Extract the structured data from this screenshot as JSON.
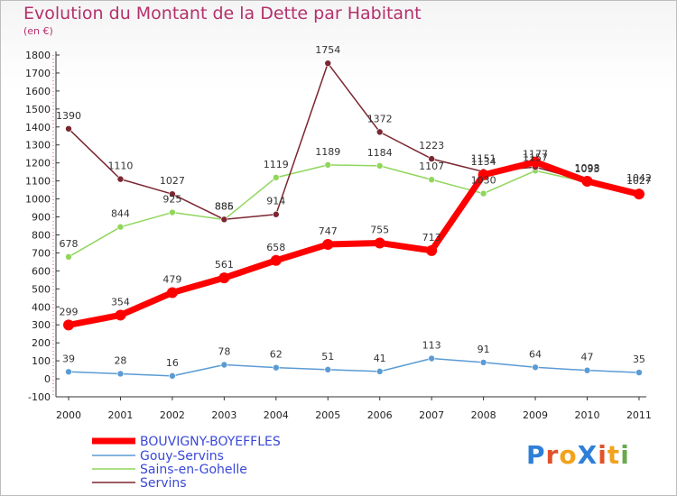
{
  "title": "Evolution du Montant de la Dette par Habitant",
  "unit": "(en €)",
  "logo": {
    "text": "ProXiti",
    "letters": [
      {
        "ch": "P",
        "color": "#2f7fd8"
      },
      {
        "ch": "r",
        "color": "#e2522a"
      },
      {
        "ch": "o",
        "color": "#f2a21b"
      },
      {
        "ch": "X",
        "color": "#2f7fd8"
      },
      {
        "ch": "i",
        "color": "#e2522a"
      },
      {
        "ch": "t",
        "color": "#f2a21b"
      },
      {
        "ch": "i",
        "color": "#6aa84f"
      }
    ]
  },
  "chart_data": {
    "type": "line",
    "title": "Evolution du Montant de la Dette par Habitant",
    "ylabel": "(en €)",
    "x": [
      "2000",
      "2001",
      "2002",
      "2003",
      "2004",
      "2005",
      "2006",
      "2007",
      "2008",
      "2009",
      "2010",
      "2011"
    ],
    "ylim": [
      -100,
      1800
    ],
    "yticks": [
      -100,
      0,
      100,
      200,
      300,
      400,
      500,
      600,
      700,
      800,
      900,
      1000,
      1100,
      1200,
      1300,
      1400,
      1500,
      1600,
      1700,
      1800
    ],
    "grid": false,
    "legend": "bottom-left",
    "series": [
      {
        "name": "BOUVIGNY-BOYEFFLES",
        "color": "#ff0000",
        "width": 7,
        "marker": 6,
        "values": [
          299,
          354,
          479,
          561,
          658,
          747,
          755,
          713,
          1134,
          1205,
          1098,
          1027
        ],
        "labels": [
          "299",
          "354",
          "479",
          "561",
          "658",
          "747",
          "755",
          "713",
          "1134",
          "",
          "1098",
          ""
        ]
      },
      {
        "name": "Gouy-Servins",
        "color": "#5a9bd4",
        "width": 1.5,
        "marker": 3.5,
        "values": [
          39,
          28,
          16,
          78,
          62,
          51,
          41,
          113,
          91,
          64,
          47,
          35
        ],
        "labels": [
          "39",
          "28",
          "16",
          "78",
          "62",
          "51",
          "41",
          "113",
          "91",
          "64",
          "47",
          "35"
        ]
      },
      {
        "name": "Sains-en-Gohelle",
        "color": "#90d65c",
        "width": 1.5,
        "marker": 3.5,
        "values": [
          678,
          844,
          925,
          885,
          1119,
          1189,
          1184,
          1107,
          1030,
          1157,
          1093,
          1042
        ],
        "labels": [
          "678",
          "844",
          "925",
          "885",
          "1119",
          "1189",
          "1184",
          "1107",
          "1030",
          "1157",
          "1093",
          "1042"
        ]
      },
      {
        "name": "Servins",
        "color": "#7b2630",
        "width": 1.5,
        "marker": 3.5,
        "values": [
          1390,
          1110,
          1027,
          886,
          914,
          1754,
          1372,
          1223,
          1151,
          1177,
          1098,
          1027
        ],
        "labels": [
          "1390",
          "1110",
          "1027",
          "886",
          "914",
          "1754",
          "1372",
          "1223",
          "1151",
          "1177",
          "",
          "1027"
        ]
      }
    ]
  }
}
